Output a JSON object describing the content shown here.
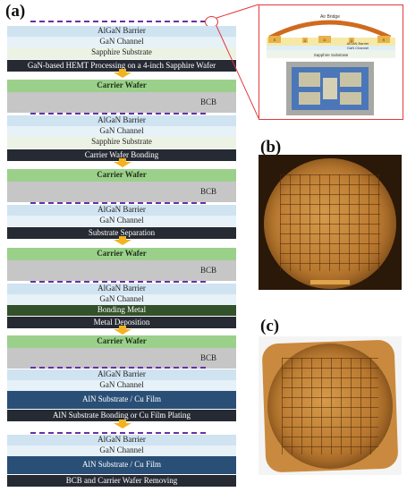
{
  "panels": {
    "a": "(a)",
    "b": "(b)",
    "c": "(c)"
  },
  "layers": {
    "algan_barrier": "AlGaN Barrier",
    "gan_channel": "GaN Channel",
    "sapphire_substrate": "Sapphire Substrate",
    "carrier_wafer": "Carrier Wafer",
    "bcb": "BCB",
    "bonding_metal": "Bonding Metal",
    "aln_cu": "AlN Substrate / Cu Film"
  },
  "steps": {
    "s1": "GaN-based HEMT Processing on a 4-inch Sapphire Wafer",
    "s2": "Carrier Wafer Bonding",
    "s3": "Substrate Separation",
    "s4": "Metal Deposition",
    "s5": "AlN Substrate Bonding or Cu Film Plating",
    "s6": "BCB and Carrier Wafer Removing"
  },
  "inset": {
    "air_bridge": "Air Bridge",
    "s": "S",
    "d": "D",
    "g": "G",
    "barrier": "AlGaN Barrier",
    "channel": "GaN Channel",
    "substrate": "Sapphire Substrate"
  },
  "colors": {
    "dashed_line": "#6a2fa6",
    "arrow": "#f3b21f",
    "inset_border": "#e23a3a",
    "step_bar": "#252a33",
    "carrier_wafer": "#9bd08b",
    "aln_cu": "#2a4f76"
  }
}
